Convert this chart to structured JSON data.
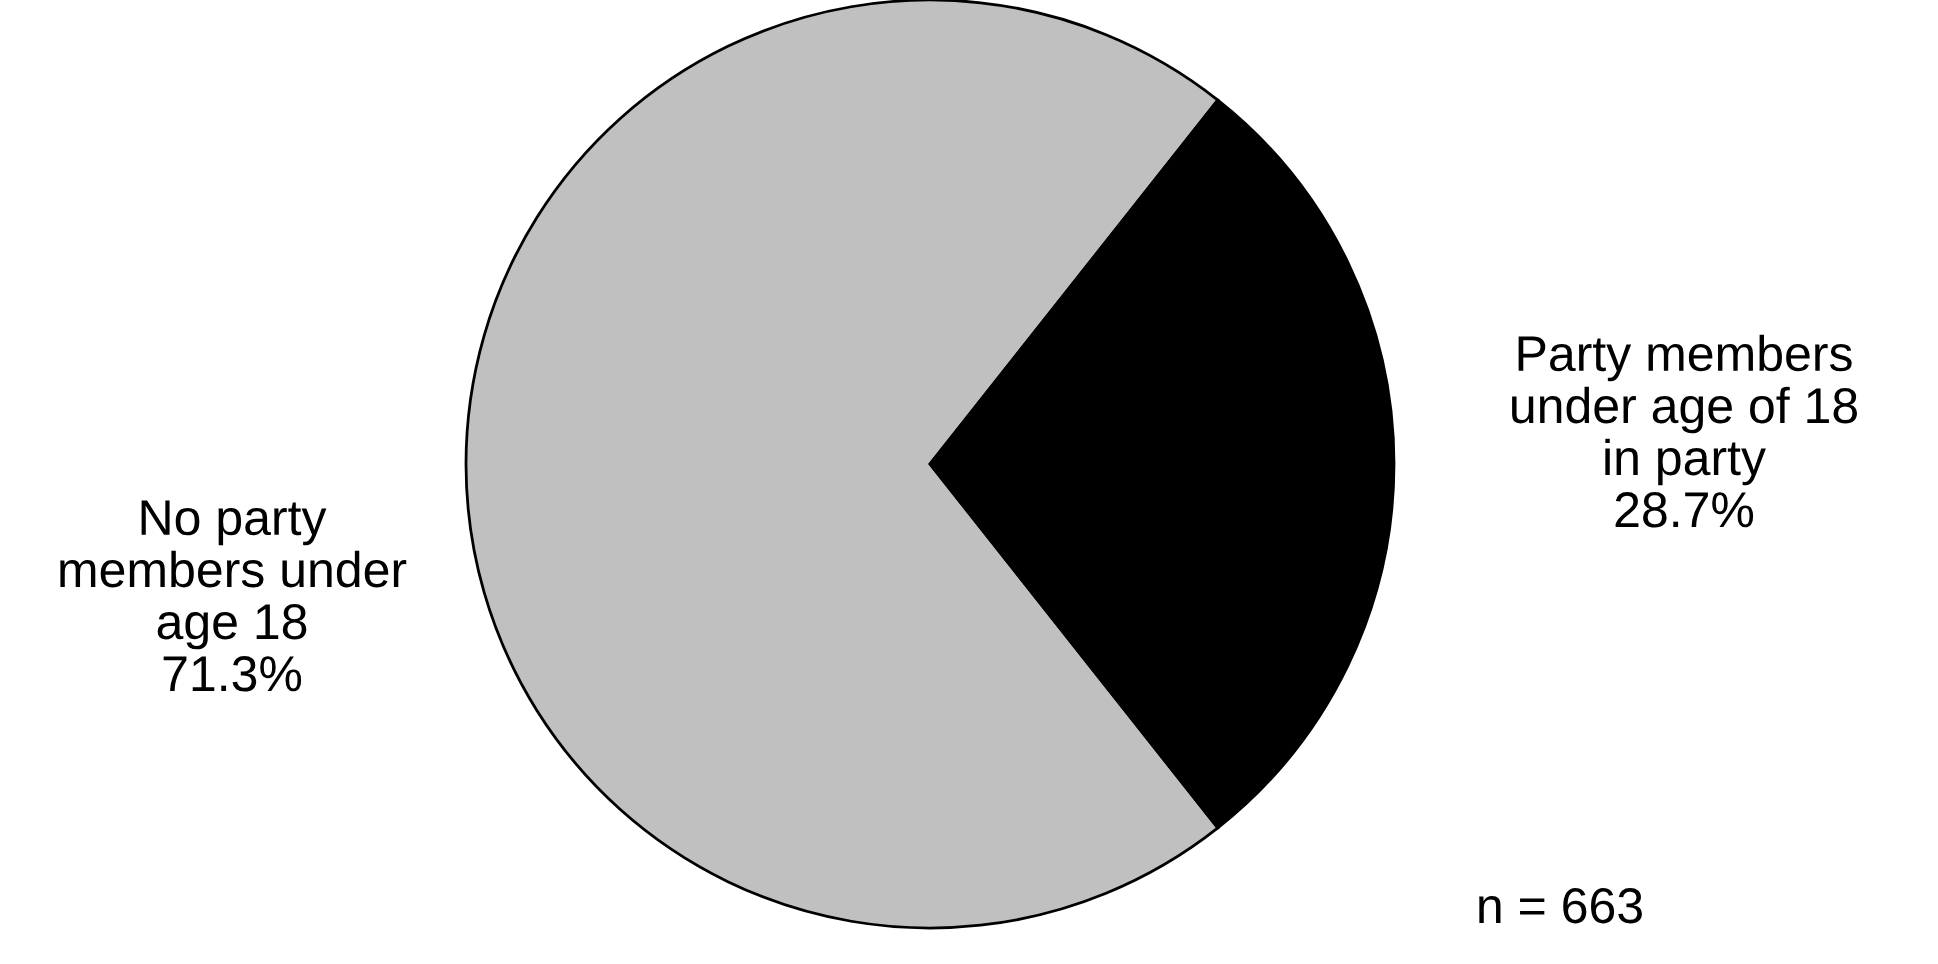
{
  "chart_data": {
    "type": "pie",
    "categories": [
      "No party\nmembers under\nage 18",
      "Party members\nunder age of 18\nin party"
    ],
    "values": [
      71.3,
      28.7
    ],
    "value_labels": [
      "71.3%",
      "28.7%"
    ],
    "colors": [
      "#c0c0c0",
      "#000000"
    ],
    "annotations": [
      "n = 663"
    ]
  }
}
